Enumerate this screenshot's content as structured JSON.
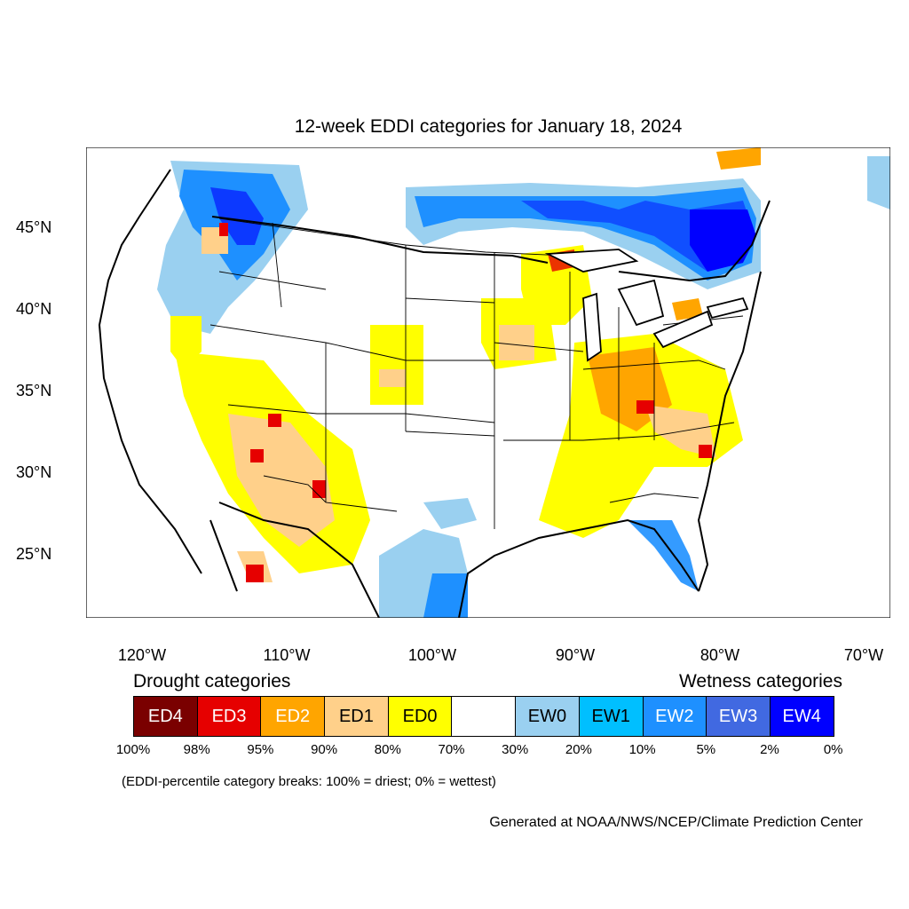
{
  "title": "12-week EDDI categories for January 18, 2024",
  "lat_labels": [
    "45°N",
    "40°N",
    "35°N",
    "30°N",
    "25°N"
  ],
  "lon_labels": [
    "120°W",
    "110°W",
    "100°W",
    "90°W",
    "80°W",
    "70°W"
  ],
  "drought_heading": "Drought categories",
  "wetness_heading": "Wetness categories",
  "legend": {
    "categories": [
      {
        "label": "ED4",
        "color": "#7a0000",
        "text_color": "#ffffff"
      },
      {
        "label": "ED3",
        "color": "#e60000",
        "text_color": "#ffffff"
      },
      {
        "label": "ED2",
        "color": "#ffa500",
        "text_color": "#ffffff"
      },
      {
        "label": "ED1",
        "color": "#ffd08a",
        "text_color": "#000000"
      },
      {
        "label": "ED0",
        "color": "#ffff00",
        "text_color": "#000000"
      },
      {
        "label": "",
        "color": "#ffffff",
        "text_color": "#000000"
      },
      {
        "label": "EW0",
        "color": "#9ad0f0",
        "text_color": "#000000"
      },
      {
        "label": "EW1",
        "color": "#00bfff",
        "text_color": "#000000"
      },
      {
        "label": "EW2",
        "color": "#1e90ff",
        "text_color": "#ffffff"
      },
      {
        "label": "EW3",
        "color": "#4169e1",
        "text_color": "#ffffff"
      },
      {
        "label": "EW4",
        "color": "#0000ff",
        "text_color": "#ffffff"
      }
    ],
    "breaks": [
      "100%",
      "98%",
      "95%",
      "90%",
      "80%",
      "70%",
      "30%",
      "20%",
      "10%",
      "5%",
      "2%",
      "0%"
    ]
  },
  "note": "(EDDI-percentile category breaks: 100% = driest; 0% = wettest)",
  "credit": "Generated at NOAA/NWS/NCEP/Climate Prediction Center"
}
